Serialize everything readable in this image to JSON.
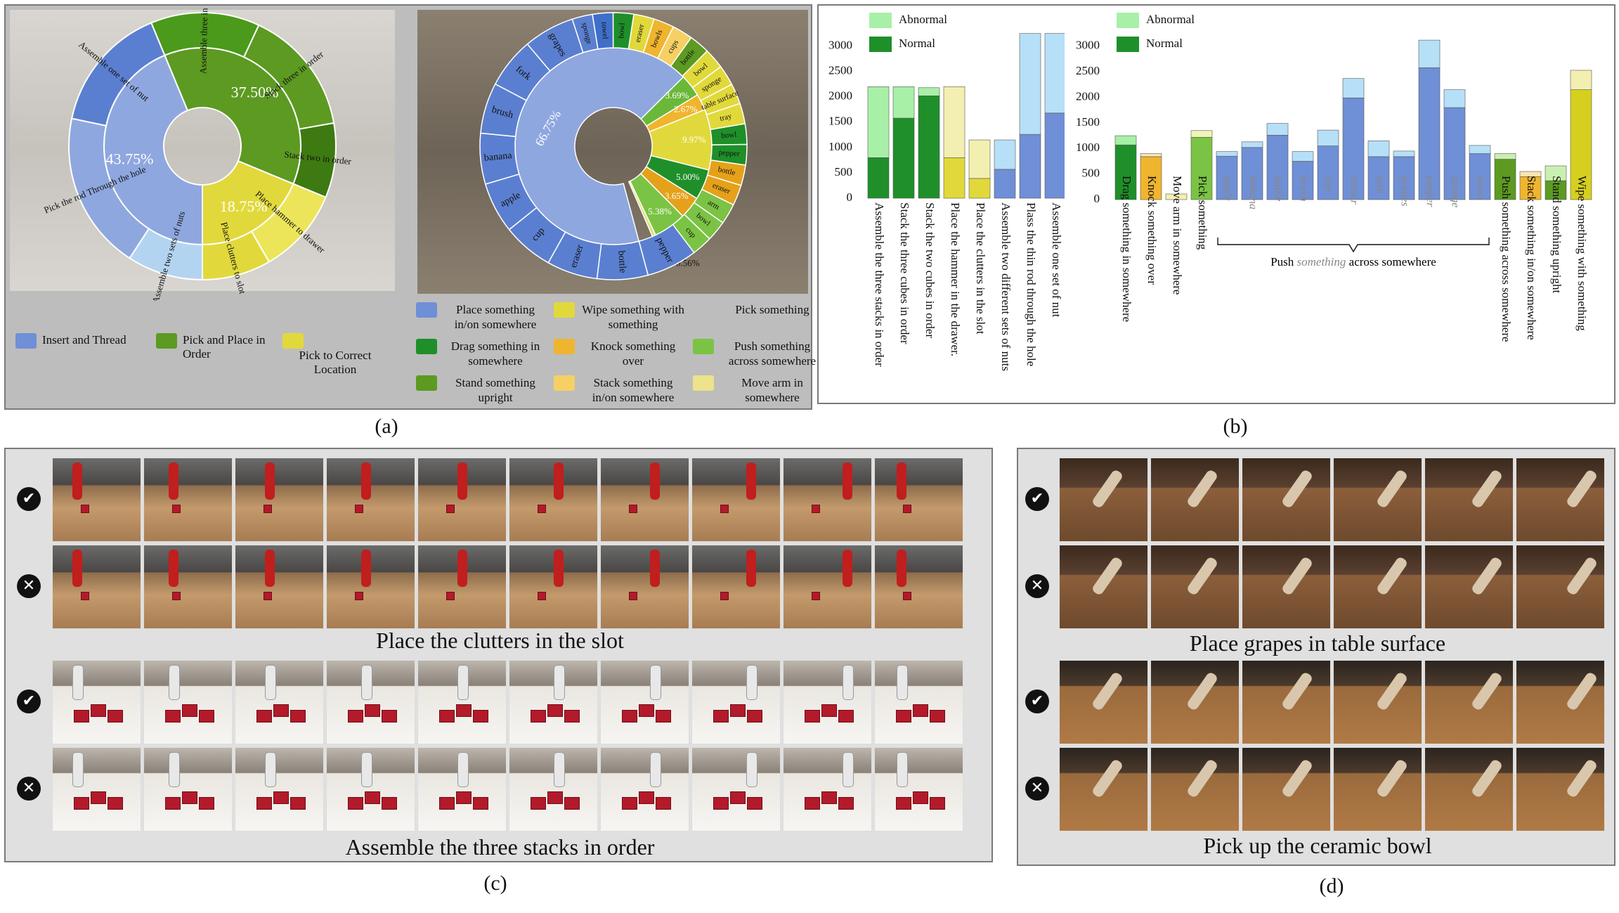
{
  "panel_a": {
    "sunburst1": {
      "inner": [
        {
          "label": "43.75%",
          "value": 43.75,
          "color": "#8fa7df"
        },
        {
          "label": "37.50%",
          "value": 37.5,
          "color": "#5c9a22"
        },
        {
          "label": "18.75%",
          "value": 18.75,
          "color": "#e1d93b"
        }
      ],
      "outer": [
        {
          "label": "Assemble one set of nut",
          "color": "#5b7fd0"
        },
        {
          "label": "Pick the rod Through the hole",
          "color": "#8fa7df"
        },
        {
          "label": "Assemble two sets of nuts",
          "color": "#b3d4f0"
        },
        {
          "label": "Place clutters to slot",
          "color": "#e1d93b"
        },
        {
          "label": "Place hammer to drawer",
          "color": "#ece55a"
        },
        {
          "label": "Stack two in order",
          "color": "#3d7a12"
        },
        {
          "label": "Stack three in order",
          "color": "#5c9a22"
        },
        {
          "label": "Assemble three in order",
          "color": "#4b9a1b"
        }
      ],
      "legend": [
        {
          "label": "Insert and Thread",
          "color": "#6f8fd6"
        },
        {
          "label": "Pick and Place in Order",
          "color": "#5c9a22"
        },
        {
          "label": "Pick to Correct Location",
          "color": "#e1d93b"
        }
      ]
    },
    "sunburst2": {
      "inner": [
        {
          "label": "66.75%",
          "value": 66.75,
          "color": "#8fa7df"
        },
        {
          "label": "3.69%",
          "value": 3.69,
          "color": "#6ab83a"
        },
        {
          "label": "2.67%",
          "value": 2.67,
          "color": "#efb52e"
        },
        {
          "label": "9.97%",
          "value": 9.97,
          "color": "#e1d93b"
        },
        {
          "label": "5.00%",
          "value": 5.0,
          "color": "#1f8f2a"
        },
        {
          "label": "3.65%",
          "value": 3.65,
          "color": "#e5a11a"
        },
        {
          "label": "5.38%",
          "value": 5.38,
          "color": "#7bc344"
        },
        {
          "label": "0.56%",
          "value": 0.56,
          "color": "#e0e07a"
        }
      ],
      "outer": [
        "sponge",
        "towel",
        "bowl",
        "eraser",
        "bowls",
        "cups",
        "bottle",
        "bowl",
        "sponge",
        "table surface",
        "tray",
        "bowl",
        "pepper",
        "bottle",
        "eraser",
        "arm",
        "bowl",
        "cup",
        "pepper",
        "bottle",
        "eraser",
        "cup",
        "apple",
        "banana",
        "brush",
        "fork",
        "grapes"
      ],
      "legend": [
        {
          "label": "Place something in/on somewhere",
          "color": "#6f8fd6"
        },
        {
          "label": "Wipe something with something",
          "color": "#e1d93b"
        },
        {
          "label": "Pick something",
          "color": ""
        },
        {
          "label": "Drag something in somewhere",
          "color": "#1f8f2a"
        },
        {
          "label": "Knock something over",
          "color": "#efb52e"
        },
        {
          "label": "Push something across somewhere",
          "color": "#7bc344"
        },
        {
          "label": "Stand something upright",
          "color": "#5c9a22"
        },
        {
          "label": "Stack something in/on somewhere",
          "color": "#f6d064"
        },
        {
          "label": "Move arm in somewhere",
          "color": "#ece38a"
        }
      ]
    },
    "caption": "(a)"
  },
  "chart_data": [
    {
      "type": "bar",
      "stacked": true,
      "ylim": [
        0,
        3000
      ],
      "yticks": [
        0,
        500,
        1000,
        1500,
        2000,
        2500,
        3000
      ],
      "legend": [
        "Abnormal",
        "Normal"
      ],
      "categories": [
        "Assemble the three stacks in order",
        "Stack the three cubes in order",
        "Stack the two cubes in order",
        "Place the hammer in the drawer.",
        "Place the clutters in the slot",
        "Assemble two different sets of nuts",
        "Plass the thin rod through the hole",
        "Assemble one set of nut"
      ],
      "normal": [
        800,
        1580,
        2020,
        800,
        390,
        570,
        1260,
        1680
      ],
      "abnormal": [
        1400,
        620,
        160,
        1400,
        760,
        580,
        1990,
        1570
      ],
      "colors_normal": [
        "#1f8f2a",
        "#1f8f2a",
        "#1f8f2a",
        "#e1d93b",
        "#e1d93b",
        "#6f8fd6",
        "#6f8fd6",
        "#6f8fd6"
      ],
      "colors_abnormal": [
        "#a8f0a8",
        "#a8f0a8",
        "#a8f0a8",
        "#f3efb0",
        "#f3efb0",
        "#b6e0f7",
        "#b6e0f7",
        "#b6e0f7"
      ]
    },
    {
      "type": "bar",
      "stacked": true,
      "ylim": [
        0,
        3000
      ],
      "yticks": [
        0,
        500,
        1000,
        1500,
        2000,
        2500,
        3000
      ],
      "legend": [
        "Abnormal",
        "Normal"
      ],
      "categories": [
        "Drag something in somewhere",
        "Knock something over",
        "Move arm in somewhere",
        "Pick something",
        "apple",
        "banana",
        "bottle",
        "brush",
        "cup",
        "eraser",
        "fork",
        "grapes",
        "pepper",
        "sponge",
        "towel",
        "Push something across somewhere",
        "Stack something in/on somewhere",
        "Stand something upright",
        "Wipe something with something"
      ],
      "italic_categories": [
        "apple",
        "banana",
        "bottle",
        "brush",
        "cup",
        "eraser",
        "fork",
        "grapes",
        "pepper",
        "sponge",
        "towel"
      ],
      "normal": [
        1070,
        840,
        0,
        1220,
        850,
        1020,
        1260,
        750,
        1050,
        1990,
        840,
        840,
        2580,
        1800,
        900,
        790,
        450,
        370,
        2150
      ],
      "abnormal": [
        180,
        60,
        110,
        130,
        90,
        110,
        230,
        190,
        310,
        380,
        310,
        110,
        540,
        350,
        160,
        110,
        100,
        290,
        380
      ],
      "colors_normal": [
        "#1f8f2a",
        "#efb52e",
        "#e3d74a",
        "#7bc344",
        "#6f8fd6",
        "#6f8fd6",
        "#6f8fd6",
        "#6f8fd6",
        "#6f8fd6",
        "#6f8fd6",
        "#6f8fd6",
        "#6f8fd6",
        "#6f8fd6",
        "#6f8fd6",
        "#6f8fd6",
        "#5c9a22",
        "#efb52e",
        "#5c9a22",
        "#d6cf1f"
      ],
      "colors_abnormal": [
        "#a8f0a8",
        "#f7e6b8",
        "#f3efb0",
        "#f0f5b8",
        "#b6e0f7",
        "#b6e0f7",
        "#b6e0f7",
        "#b6e0f7",
        "#b6e0f7",
        "#b6e0f7",
        "#b6e0f7",
        "#b6e0f7",
        "#b6e0f7",
        "#b6e0f7",
        "#b6e0f7",
        "#c9f0b0",
        "#fbe4b0",
        "#c9f0b0",
        "#f3efb0"
      ],
      "group_label": {
        "before": "Push ",
        "italic": "something",
        "after": " across somewhere"
      }
    }
  ],
  "panel_b_caption": "(b)",
  "panel_c": {
    "title_top": "Place the clutters in the slot",
    "title_bottom": "Assemble the three stacks in order",
    "caption": "(c)"
  },
  "panel_d": {
    "title_top": "Place grapes in table surface",
    "title_bottom": "Pick up the ceramic bowl",
    "caption": "(d)"
  },
  "icons": {
    "success": "checkmark-icon",
    "failure": "cross-icon"
  }
}
